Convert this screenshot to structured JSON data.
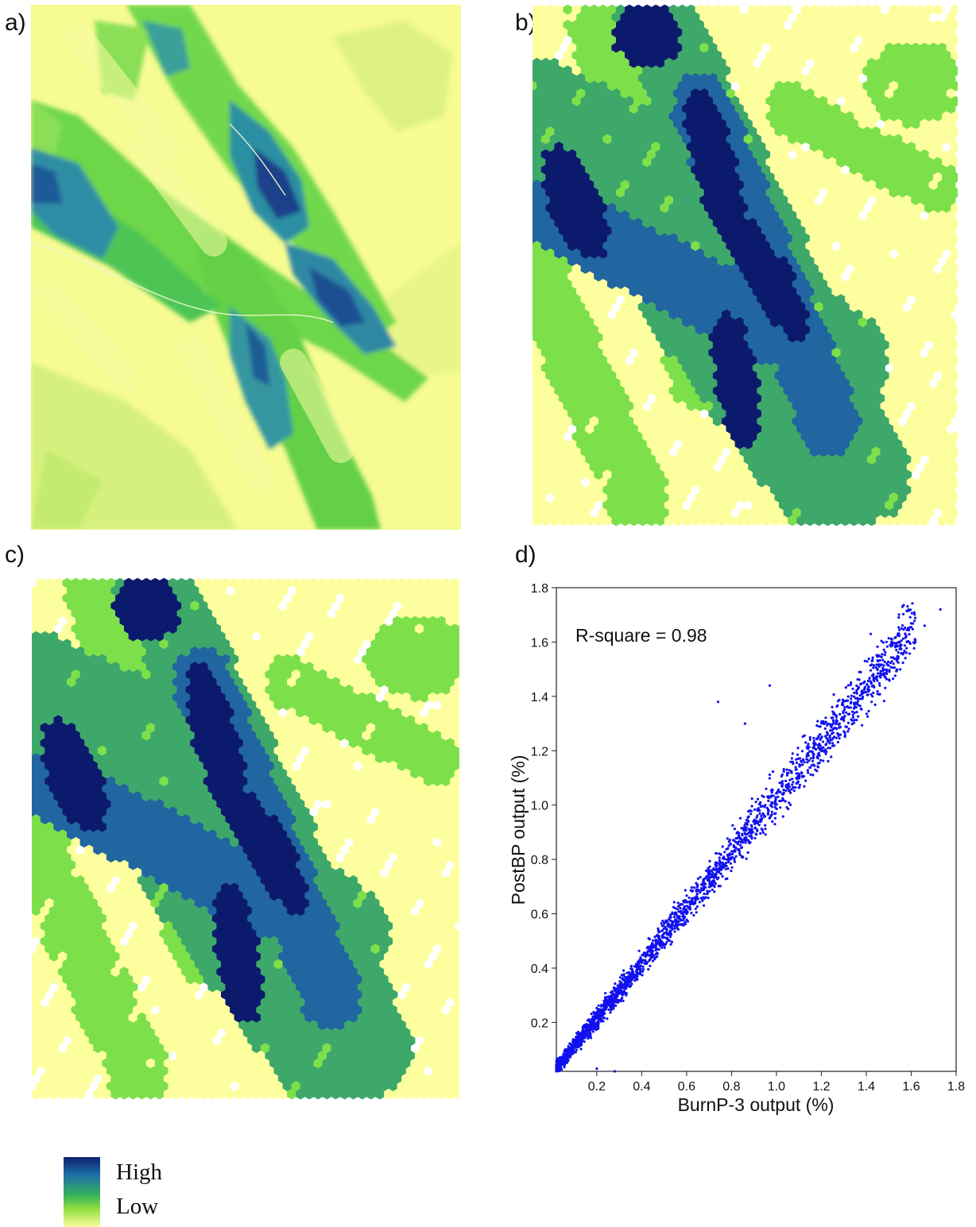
{
  "panels": {
    "a": "a)",
    "b": "b)",
    "c": "c)",
    "d": "d)"
  },
  "legend": {
    "high": "High",
    "low": "Low",
    "colors": [
      "#0d1f6f",
      "#1d6fa8",
      "#37b35a",
      "#93e03f",
      "#fbfda0"
    ]
  },
  "palette": {
    "v5": "#0c1a6d",
    "v4": "#2166a0",
    "v3": "#3da86a",
    "v2": "#7de04a",
    "v1": "#fdff9e",
    "scatter": "#1111ee"
  },
  "chart_data": {
    "type": "scatter",
    "xlabel": "BurnP-3 output (%)",
    "ylabel": "PostBP output (%)",
    "annotation": "R-square = 0.98",
    "xlim": [
      0.02,
      1.8
    ],
    "ylim": [
      0.02,
      1.8
    ],
    "xticks": [
      "0.2",
      "0.4",
      "0.6",
      "0.8",
      "1.0",
      "1.2",
      "1.4",
      "1.6",
      "1.8"
    ],
    "yticks": [
      "0.2",
      "0.4",
      "0.6",
      "0.8",
      "1.0",
      "1.2",
      "1.4",
      "1.6",
      "1.8"
    ],
    "r_square": 0.98,
    "outliers": [
      {
        "x": 0.74,
        "y": 1.38
      },
      {
        "x": 0.97,
        "y": 1.44
      },
      {
        "x": 0.86,
        "y": 1.3
      },
      {
        "x": 0.28,
        "y": 0.02
      },
      {
        "x": 0.2,
        "y": 0.03
      },
      {
        "x": 1.73,
        "y": 1.72
      },
      {
        "x": 1.42,
        "y": 1.63
      },
      {
        "x": 1.66,
        "y": 1.66
      }
    ]
  }
}
